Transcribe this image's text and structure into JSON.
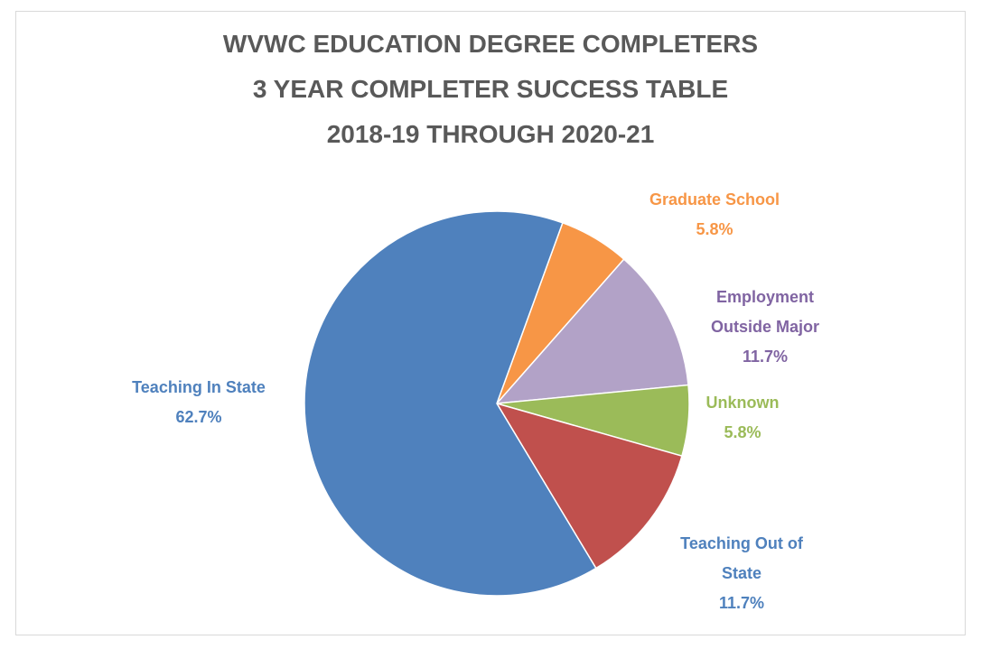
{
  "chart_data": {
    "type": "pie",
    "title": [
      "WVWC EDUCATION DEGREE COMPLETERS",
      "3 YEAR COMPLETER SUCCESS TABLE",
      "2018-19 THROUGH 2020-21"
    ],
    "categories": [
      "Graduate School",
      "Employment Outside Major",
      "Unknown",
      "Teaching Out of State",
      "Teaching In State"
    ],
    "values": [
      5.8,
      11.7,
      5.8,
      11.7,
      62.7
    ],
    "value_labels": [
      "5.8%",
      "11.7%",
      "5.8%",
      "11.7%",
      "62.7%"
    ],
    "colors": [
      "#f79646",
      "#b2a2c7",
      "#9bbb59",
      "#c0504d",
      "#4f81bd"
    ],
    "label_colors": [
      "#f79646",
      "#8064a2",
      "#9bbb59",
      "#4f81bd",
      "#4f81bd"
    ]
  }
}
